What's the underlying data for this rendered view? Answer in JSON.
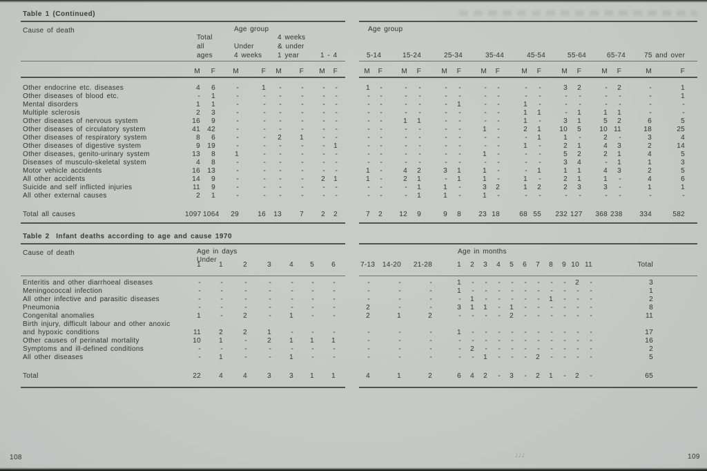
{
  "page": {
    "left_number": "108",
    "right_number": "109",
    "center_mark": "111"
  },
  "colors": {
    "paper": "#c6cac6",
    "ink": "#424744",
    "rule_dark": "#4d524e",
    "rule_light": "#6e736e"
  },
  "table1": {
    "title": "Table 1 (Continued)",
    "cause_of_death_label": "Cause of death",
    "age_group_label_left": "Age group",
    "age_group_label_right": "Age group",
    "left_group_headers": [
      [
        "Total",
        "all",
        "ages"
      ],
      [
        "Under",
        "4 weeks"
      ],
      [
        "4 weeks",
        "& under",
        "1 year"
      ],
      [
        "1 - 4"
      ]
    ],
    "sex_headers": [
      "M",
      "F"
    ],
    "right_group_headers": [
      "5-14",
      "15-24",
      "25-34",
      "35-44",
      "45-54",
      "55-64",
      "65-74",
      "75 and over"
    ],
    "rows": [
      {
        "cause": "Other endocrine etc. diseases",
        "left": [
          "4",
          "6",
          "-",
          "1",
          "-",
          "-",
          "-",
          "-"
        ],
        "right": [
          "1",
          "-",
          "-",
          "-",
          "-",
          "-",
          "-",
          "-",
          "-",
          "-",
          "3",
          "2",
          "-",
          "2",
          "-",
          "1"
        ]
      },
      {
        "cause": "Other diseases of blood etc.",
        "left": [
          "-",
          "1",
          "-",
          "-",
          "-",
          "-",
          "-",
          "-"
        ],
        "right": [
          "-",
          "-",
          "-",
          "-",
          "-",
          "-",
          "-",
          "-",
          "-",
          "-",
          "-",
          "-",
          "-",
          "-",
          "-",
          "1"
        ]
      },
      {
        "cause": "Mental disorders",
        "left": [
          "1",
          "1",
          "-",
          "-",
          "-",
          "-",
          "-",
          "-"
        ],
        "right": [
          "-",
          "-",
          "-",
          "-",
          "-",
          "1",
          "-",
          "-",
          "1",
          "-",
          "-",
          "-",
          "-",
          "-",
          "-",
          "-"
        ]
      },
      {
        "cause": "Multiple sclerosis",
        "left": [
          "2",
          "3",
          "-",
          "-",
          "-",
          "-",
          "-",
          "-"
        ],
        "right": [
          "-",
          "-",
          "-",
          "-",
          "-",
          "-",
          "-",
          "-",
          "1",
          "1",
          "-",
          "1",
          "1",
          "1",
          "-",
          "-"
        ]
      },
      {
        "cause": "Other diseases of nervous system",
        "left": [
          "16",
          "9",
          "-",
          "-",
          "-",
          "-",
          "-",
          "-"
        ],
        "right": [
          "-",
          "-",
          "1",
          "1",
          "-",
          "-",
          "-",
          "-",
          "1",
          "-",
          "3",
          "1",
          "5",
          "2",
          "6",
          "5"
        ]
      },
      {
        "cause": "Other diseases of circulatory system",
        "left": [
          "41",
          "42",
          "-",
          "-",
          "-",
          "-",
          "-",
          "-"
        ],
        "right": [
          "-",
          "-",
          "-",
          "-",
          "-",
          "-",
          "1",
          "-",
          "2",
          "1",
          "10",
          "5",
          "10",
          "11",
          "18",
          "25"
        ]
      },
      {
        "cause": "Other diseases of respiratory system",
        "left": [
          "8",
          "6",
          "-",
          "-",
          "2",
          "1",
          "-",
          "-"
        ],
        "right": [
          "-",
          "-",
          "-",
          "-",
          "-",
          "-",
          "-",
          "-",
          "-",
          "1",
          "1",
          "-",
          "2",
          "-",
          "3",
          "4"
        ]
      },
      {
        "cause": "Other diseases of digestive system",
        "left": [
          "9",
          "19",
          "-",
          "-",
          "-",
          "-",
          "-",
          "1"
        ],
        "right": [
          "-",
          "-",
          "-",
          "-",
          "-",
          "-",
          "-",
          "-",
          "1",
          "-",
          "2",
          "1",
          "4",
          "3",
          "2",
          "14"
        ]
      },
      {
        "cause": "Other diseases, genito-urinary system",
        "left": [
          "13",
          "8",
          "1",
          "-",
          "-",
          "-",
          "-",
          "-"
        ],
        "right": [
          "-",
          "-",
          "-",
          "-",
          "-",
          "-",
          "1",
          "-",
          "-",
          "-",
          "5",
          "2",
          "2",
          "1",
          "4",
          "5"
        ]
      },
      {
        "cause": "Diseases of musculo-skeletal system",
        "left": [
          "4",
          "8",
          "-",
          "-",
          "-",
          "-",
          "-",
          "-"
        ],
        "right": [
          "-",
          "-",
          "-",
          "-",
          "-",
          "-",
          "-",
          "-",
          "-",
          "-",
          "3",
          "4",
          "-",
          "1",
          "1",
          "3"
        ]
      },
      {
        "cause": "Motor vehicle accidents",
        "left": [
          "16",
          "13",
          "-",
          "-",
          "-",
          "-",
          "-",
          "-"
        ],
        "right": [
          "1",
          "-",
          "4",
          "2",
          "3",
          "1",
          "1",
          "-",
          "-",
          "1",
          "1",
          "1",
          "4",
          "3",
          "2",
          "5"
        ]
      },
      {
        "cause": "All other accidents",
        "left": [
          "14",
          "9",
          "-",
          "-",
          "-",
          "-",
          "2",
          "1"
        ],
        "right": [
          "1",
          "-",
          "2",
          "1",
          "-",
          "1",
          "1",
          "-",
          "1",
          "-",
          "2",
          "1",
          "1",
          "-",
          "4",
          "6"
        ]
      },
      {
        "cause": "Suicide and self inflicted injuries",
        "left": [
          "11",
          "9",
          "-",
          "-",
          "-",
          "-",
          "-",
          "-"
        ],
        "right": [
          "-",
          "-",
          "-",
          "1",
          "1",
          "-",
          "3",
          "2",
          "1",
          "2",
          "2",
          "3",
          "3",
          "-",
          "1",
          "1"
        ]
      },
      {
        "cause": "All other external causes",
        "left": [
          "2",
          "1",
          "-",
          "-",
          "-",
          "-",
          "-",
          "-"
        ],
        "right": [
          "-",
          "-",
          "-",
          "1",
          "1",
          "-",
          "1",
          "-",
          "-",
          "-",
          "-",
          "-",
          "-",
          "-",
          "-",
          "-"
        ]
      }
    ],
    "total_row": {
      "cause": "Total all causes",
      "left": [
        "1097",
        "1064",
        "29",
        "16",
        "13",
        "7",
        "2",
        "2"
      ],
      "right": [
        "7",
        "2",
        "12",
        "9",
        "9",
        "8",
        "23",
        "18",
        "68",
        "55",
        "232",
        "127",
        "368",
        "238",
        "334",
        "582"
      ]
    }
  },
  "table2": {
    "title": "Table 2  Infant deaths according to age and cause 1970",
    "cause_of_death_label": "Cause of death",
    "age_days_label": "Age in days",
    "under_label": "Under",
    "day_headers": [
      "1",
      "1",
      "2",
      "3",
      "4",
      "5",
      "6"
    ],
    "age_months_label": "Age in months",
    "week_headers": [
      "7-13",
      "14-20",
      "21-28"
    ],
    "month_headers": [
      "1",
      "2",
      "3",
      "4",
      "5",
      "6",
      "7",
      "8",
      "9",
      "10",
      "11"
    ],
    "total_header": "Total",
    "rows": [
      {
        "cause": "Enteritis and other diarrhoeal diseases",
        "days": [
          "-",
          "-",
          "-",
          "-",
          "-",
          "-",
          "-"
        ],
        "weeks_months": [
          "-",
          "-",
          "-",
          "1",
          "-",
          "-",
          "-",
          "-",
          "-",
          "-",
          "-",
          "-",
          "2",
          "-"
        ],
        "total": "3"
      },
      {
        "cause": "Meningococcal infection",
        "days": [
          "-",
          "-",
          "-",
          "-",
          "-",
          "-",
          "-"
        ],
        "weeks_months": [
          "-",
          "-",
          "-",
          "1",
          "-",
          "-",
          "-",
          "-",
          "-",
          "-",
          "-",
          "-",
          "-",
          "-"
        ],
        "total": "1"
      },
      {
        "cause": "All other infective and parasitic diseases",
        "days": [
          "-",
          "-",
          "-",
          "-",
          "-",
          "-",
          "-"
        ],
        "weeks_months": [
          "-",
          "-",
          "-",
          "-",
          "1",
          "-",
          "-",
          "-",
          "-",
          "-",
          "1",
          "-",
          "-",
          "-"
        ],
        "total": "2"
      },
      {
        "cause": "Pneumonia",
        "days": [
          "-",
          "-",
          "-",
          "-",
          "-",
          "-",
          "-"
        ],
        "weeks_months": [
          "2",
          "-",
          "-",
          "3",
          "1",
          "1",
          "-",
          "1",
          "-",
          "-",
          "-",
          "-",
          "-",
          "-"
        ],
        "total": "8"
      },
      {
        "cause": "Congenital anomalies",
        "days": [
          "1",
          "-",
          "2",
          "-",
          "1",
          "-",
          "-"
        ],
        "weeks_months": [
          "2",
          "1",
          "2",
          "-",
          "-",
          "-",
          "-",
          "2",
          "-",
          "-",
          "-",
          "-",
          "-",
          "-"
        ],
        "total": "11"
      },
      {
        "cause": "Birth injury, difficult labour and other anoxic\nand hypoxic conditions",
        "days": [
          "11",
          "2",
          "2",
          "1",
          "-",
          "-",
          "-"
        ],
        "weeks_months": [
          "-",
          "-",
          "-",
          "1",
          "-",
          "-",
          "-",
          "-",
          "-",
          "-",
          "-",
          "-",
          "-",
          "-"
        ],
        "total": "17"
      },
      {
        "cause": "Other causes of perinatal mortality",
        "days": [
          "10",
          "1",
          "-",
          "2",
          "1",
          "1",
          "1"
        ],
        "weeks_months": [
          "-",
          "-",
          "-",
          "-",
          "-",
          "-",
          "-",
          "-",
          "-",
          "-",
          "-",
          "-",
          "-",
          "-"
        ],
        "total": "16"
      },
      {
        "cause": "Symptoms and ill-defined conditions",
        "days": [
          "-",
          "-",
          "-",
          "-",
          "-",
          "-",
          "-"
        ],
        "weeks_months": [
          "-",
          "-",
          "-",
          "-",
          "2",
          "-",
          "-",
          "-",
          "-",
          "-",
          "-",
          "-",
          "-",
          "-"
        ],
        "total": "2"
      },
      {
        "cause": "All other diseases",
        "days": [
          "-",
          "1",
          "-",
          "-",
          "1",
          "-",
          "-"
        ],
        "weeks_months": [
          "-",
          "-",
          "-",
          "-",
          "-",
          "1",
          "-",
          "-",
          "-",
          "2",
          "-",
          "-",
          "-",
          "-"
        ],
        "total": "5"
      }
    ],
    "total_row": {
      "label": "Total",
      "days": [
        "22",
        "4",
        "4",
        "3",
        "3",
        "1",
        "1"
      ],
      "weeks_months": [
        "4",
        "1",
        "2",
        "6",
        "4",
        "2",
        "-",
        "3",
        "-",
        "2",
        "1",
        "-",
        "2",
        "-"
      ],
      "total": "65"
    }
  }
}
